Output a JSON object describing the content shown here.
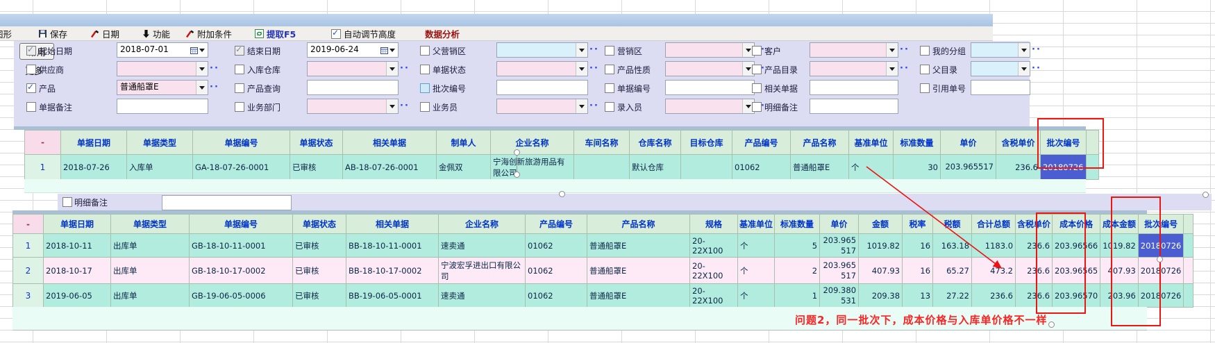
{
  "toolbar": {
    "graph_label": "图形",
    "save_label": "保存",
    "date_label": "日期",
    "function_label": "功能",
    "extra_condition_label": "附加条件",
    "extract_label": "提取F5",
    "auto_height_label": "自动调节高度",
    "auto_height_checked": true,
    "data_analysis_label": "数据分析"
  },
  "filter": {
    "common_button": "常用",
    "more_label": "更多",
    "rows": [
      [
        {
          "label": "起始日期",
          "checked": true,
          "disabled": true,
          "type": "date",
          "value": "2018-07-01"
        },
        {
          "label": "结束日期",
          "checked": true,
          "disabled": true,
          "type": "date",
          "value": "2019-06-24"
        },
        {
          "label": "父营销区",
          "checked": false,
          "type": "select",
          "fill": "blue",
          "value": "",
          "dots": true
        },
        {
          "label": "营销区",
          "checked": false,
          "type": "select",
          "fill": "pink",
          "value": "",
          "dots": true
        },
        {
          "label": "客户",
          "checked": false,
          "type": "select",
          "fill": "pink",
          "value": "",
          "dots": true
        },
        {
          "label": "我的分组",
          "checked": false,
          "type": "select",
          "fill": "blue",
          "value": "",
          "dots": true
        }
      ],
      [
        {
          "label": "供应商",
          "checked": false,
          "type": "select",
          "fill": "pink",
          "value": "",
          "dots": true
        },
        {
          "label": "入库仓库",
          "checked": false,
          "type": "select",
          "fill": "pink",
          "value": "",
          "dots": true
        },
        {
          "label": "单据状态",
          "checked": false,
          "type": "select",
          "fill": "pink",
          "value": "",
          "dots": true
        },
        {
          "label": "产品性质",
          "checked": false,
          "type": "select",
          "fill": "pink",
          "value": "",
          "dots": true
        },
        {
          "label": "产品目录",
          "checked": false,
          "type": "select",
          "fill": "pink",
          "value": "",
          "dots": true
        },
        {
          "label": "父目录",
          "checked": false,
          "type": "select",
          "fill": "blue",
          "value": "",
          "dots": true
        }
      ],
      [
        {
          "label": "产品",
          "checked": true,
          "type": "select",
          "fill": "pink",
          "value": "普通船罩E",
          "dots": true
        },
        {
          "label": "产品查询",
          "checked": false,
          "type": "input",
          "value": ""
        },
        {
          "label": "批次编号",
          "checked": false,
          "hl": true,
          "type": "input",
          "value": ""
        },
        {
          "label": "单据编号",
          "checked": false,
          "type": "input",
          "value": ""
        },
        {
          "label": "相关单据",
          "checked": false,
          "type": "input",
          "value": ""
        },
        {
          "label": "引用单号",
          "checked": false,
          "type": "input",
          "value": ""
        }
      ],
      [
        {
          "label": "单据备注",
          "checked": false,
          "type": "input",
          "value": ""
        },
        {
          "label": "业务部门",
          "checked": false,
          "type": "select",
          "fill": "pink",
          "value": "",
          "dots": true
        },
        {
          "label": "业务员",
          "checked": false,
          "type": "select",
          "fill": "pink",
          "value": "",
          "dots": true
        },
        {
          "label": "录入员",
          "checked": false,
          "type": "select",
          "fill": "pink",
          "value": "",
          "dots": true
        },
        {
          "label": "明细备注",
          "checked": false,
          "type": "input",
          "value": ""
        }
      ]
    ]
  },
  "table1": {
    "columns": [
      "-",
      "单据日期",
      "单据类型",
      "单据编号",
      "单据状态",
      "相关单据",
      "制单人",
      "企业名称",
      "车间名称",
      "仓库名称",
      "目标仓库",
      "产品编号",
      "产品名称",
      "基准单位",
      "标准数量",
      "单价",
      "含税单价",
      "批次编号"
    ],
    "rows": [
      [
        "1",
        "2018-07-26",
        "入库单",
        "GA-18-07-26-0001",
        "已审核",
        "AB-18-07-26-0001",
        "金佩双",
        "宁海创新旅游用品有限公司",
        "",
        "默认仓库",
        "",
        "01062",
        "普通船罩E",
        "个",
        "30",
        "203.965517",
        "236.6",
        "20180726"
      ]
    ],
    "selected_cells": [
      [
        0,
        17
      ]
    ]
  },
  "detail_note": {
    "label": "明细备注"
  },
  "table2": {
    "columns": [
      "-",
      "单据日期",
      "单据类型",
      "单据编号",
      "单据状态",
      "相关单据",
      "企业名称",
      "产品编号",
      "产品名称",
      "规格",
      "基准单位",
      "标准数量",
      "单价",
      "金额",
      "税率",
      "税额",
      "合计总额",
      "含税单价",
      "成本价格",
      "成本金额",
      "批次编号"
    ],
    "rows": [
      [
        "1",
        "2018-10-11",
        "出库单",
        "GB-18-10-11-0001",
        "已审核",
        "BB-18-10-11-0001",
        "速卖通",
        "01062",
        "普通船罩E",
        "20-22X100",
        "个",
        "5",
        "203.965517",
        "1019.82",
        "16",
        "163.18",
        "1183.0",
        "236.6",
        "203.96566",
        "1019.82",
        "20180726"
      ],
      [
        "2",
        "2018-10-17",
        "出库单",
        "GB-18-10-17-0002",
        "已审核",
        "BB-18-10-17-0002",
        "宁波宏孚进出口有限公司",
        "01062",
        "普通船罩E",
        "20-22X100",
        "个",
        "2",
        "203.965517",
        "407.93",
        "16",
        "65.27",
        "473.2",
        "236.6",
        "203.96565",
        "407.93",
        "20180726"
      ],
      [
        "3",
        "2019-06-05",
        "出库单",
        "GB-19-06-05-0006",
        "已审核",
        "BB-19-06-05-0001",
        "速卖通",
        "01062",
        "普通船罩E",
        "20-22X100",
        "个",
        "1",
        "209.380531",
        "209.38",
        "13",
        "27.22",
        "236.6",
        "236.6",
        "203.96570",
        "203.96",
        "20180726"
      ]
    ],
    "selected_cells": [
      [
        0,
        20
      ]
    ]
  },
  "annotation": {
    "problem_text": "问题2，同一批次下，成本价格与入库单价格不一样"
  },
  "colors": {
    "selected_cell": "#4a5ed2",
    "annotation_red": "#ee1511",
    "header_text": "#0033cc",
    "teal_row": "#b2ecdf",
    "pink_row": "#fdeaf6",
    "filter_panel": "#dcdcf2",
    "extract_blue": "#2233bb",
    "analysis_red": "#991111"
  }
}
